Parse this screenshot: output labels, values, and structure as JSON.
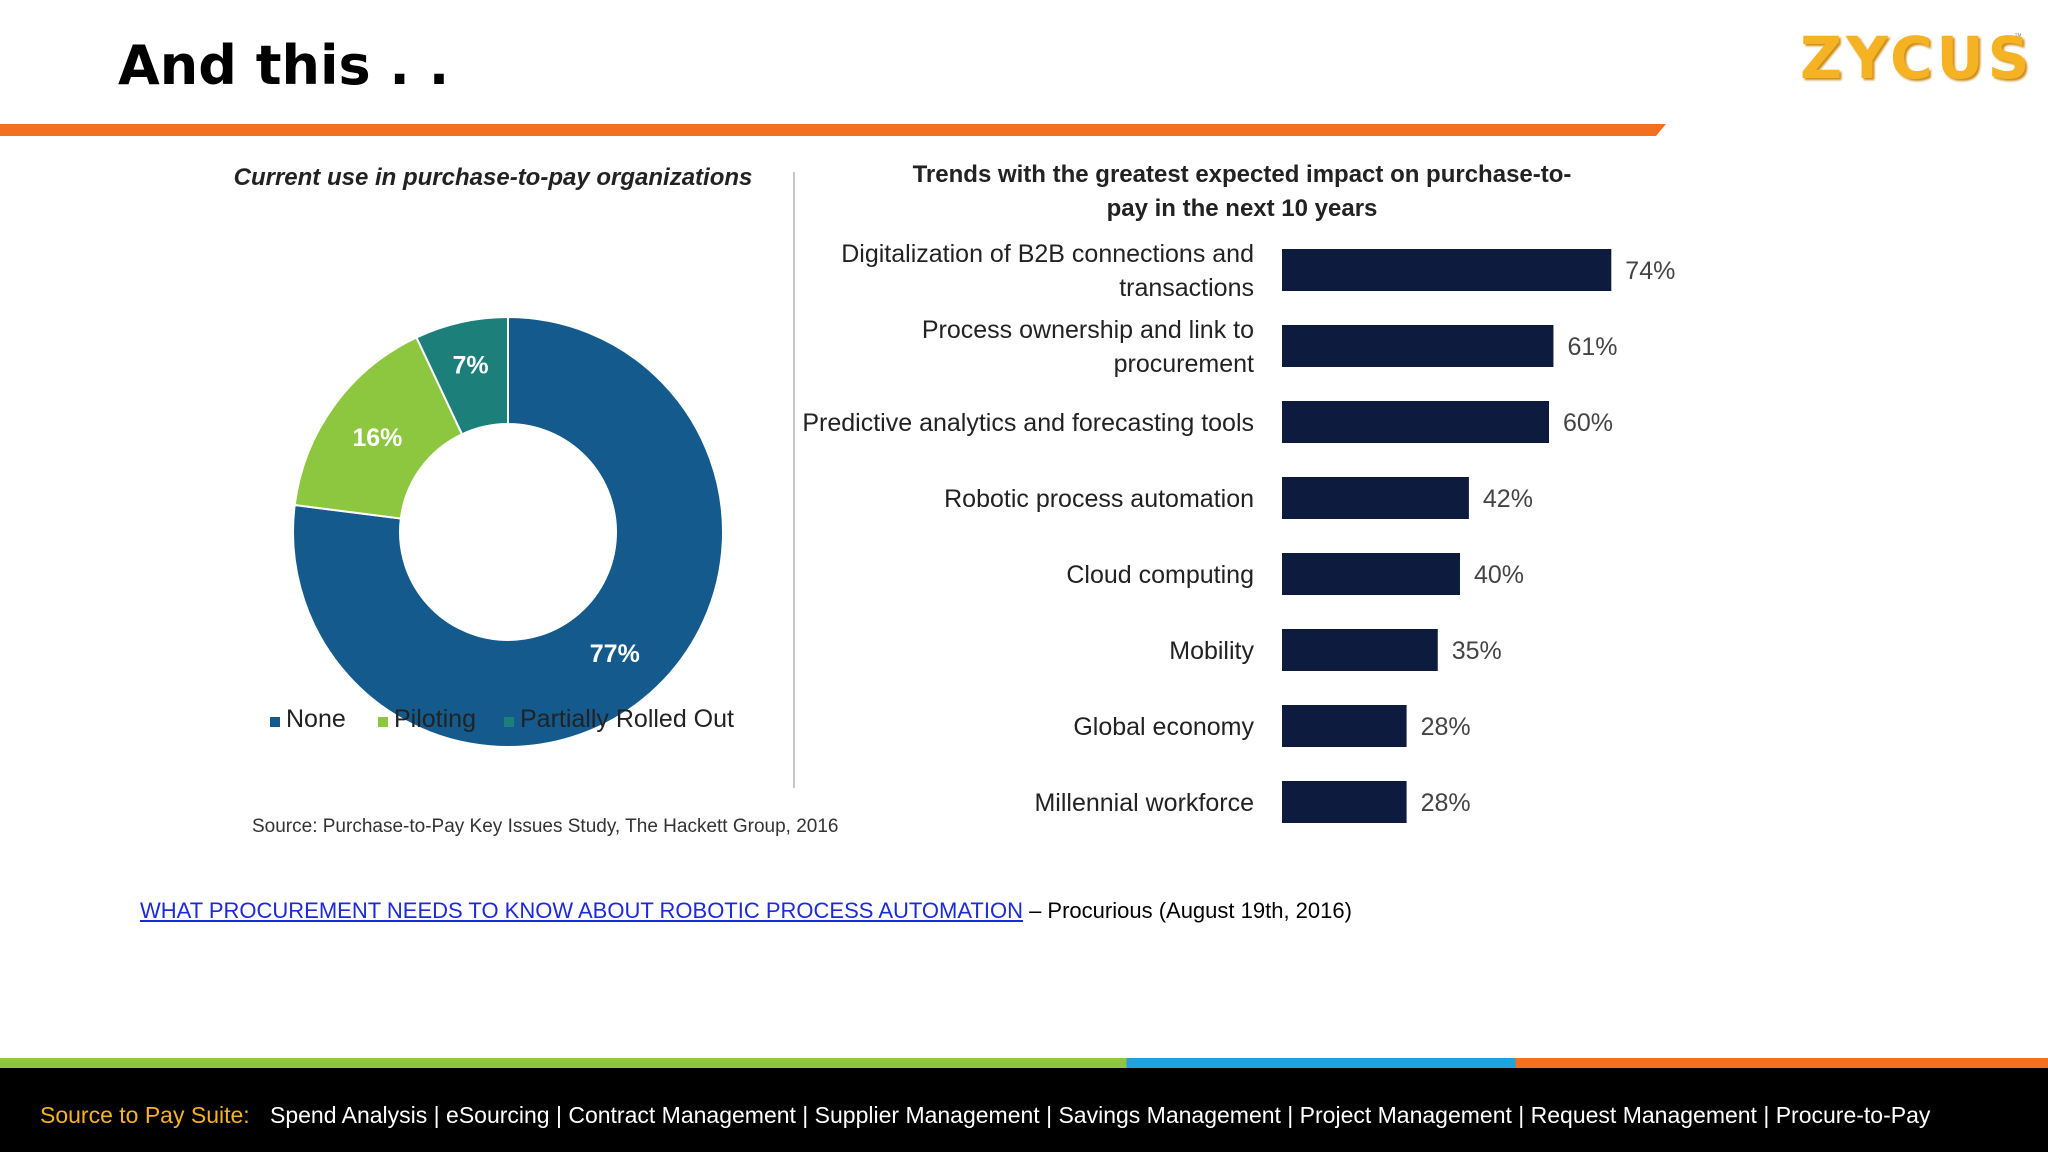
{
  "slide": {
    "title": "And this . ."
  },
  "brand": {
    "logo_text": "ZYCUS",
    "trademark": "™",
    "logo_color": "#f5b324",
    "accent_orange": "#f37021"
  },
  "chart_data": [
    {
      "type": "pie",
      "title": "Current use in purchase-to-pay organizations",
      "categories": [
        "None",
        "Piloting",
        "Partially Rolled Out"
      ],
      "values": [
        77,
        16,
        7
      ],
      "labels": [
        "77%",
        "16%",
        "7%"
      ],
      "colors": [
        "#145a8c",
        "#8dc63f",
        "#1c7f7a"
      ],
      "legend_position": "bottom",
      "donut": true
    },
    {
      "type": "bar",
      "orientation": "horizontal",
      "title_lines": [
        "Trends with the greatest expected impact on purchase-to-",
        "pay in the next  10 years"
      ],
      "categories": [
        [
          "Digitalization of B2B connections and",
          "transactions"
        ],
        [
          "Process ownership and link to",
          "procurement"
        ],
        [
          "Predictive analytics and forecasting tools"
        ],
        [
          "Robotic process automation"
        ],
        [
          "Cloud computing"
        ],
        [
          "Mobility"
        ],
        [
          "Global economy"
        ],
        [
          "Millennial workforce"
        ]
      ],
      "values": [
        74,
        61,
        60,
        42,
        40,
        35,
        28,
        28
      ],
      "labels": [
        "74%",
        "61%",
        "60%",
        "42%",
        "40%",
        "35%",
        "28%",
        "28%"
      ],
      "color": "#0d1b3e"
    }
  ],
  "source_note": "Source: Purchase-to-Pay Key Issues Study, The Hackett Group, 2016",
  "citation": {
    "link_text": "WHAT PROCUREMENT NEEDS TO KNOW ABOUT ROBOTIC PROCESS AUTOMATION",
    "suffix": " – Procurious (August 19th, 2016)"
  },
  "footer": {
    "label": "Source to Pay Suite:",
    "items": "Spend Analysis | eSourcing | Contract Management | Supplier Management | Savings Management | Project Management | Request Management | Procure-to-Pay"
  }
}
